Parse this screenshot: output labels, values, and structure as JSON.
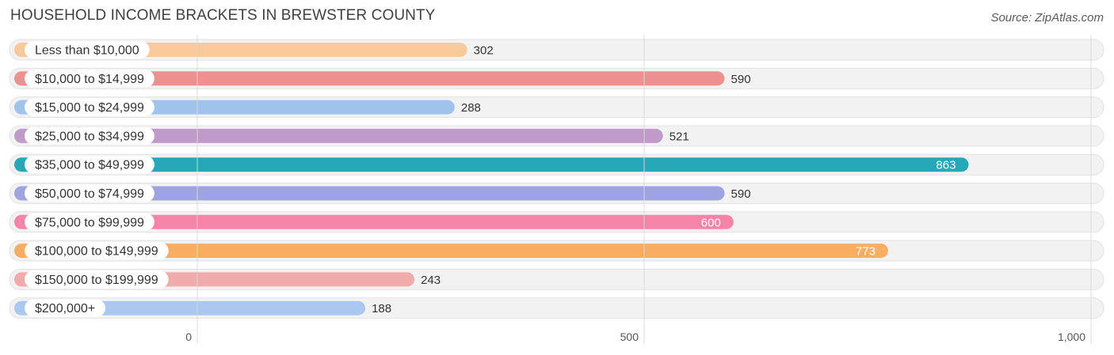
{
  "title": "HOUSEHOLD INCOME BRACKETS IN BREWSTER COUNTY",
  "source": "Source: ZipAtlas.com",
  "chart_data": {
    "type": "bar",
    "orientation": "horizontal",
    "title": "HOUSEHOLD INCOME BRACKETS IN BREWSTER COUNTY",
    "categories": [
      "Less than $10,000",
      "$10,000 to $14,999",
      "$15,000 to $24,999",
      "$25,000 to $34,999",
      "$35,000 to $49,999",
      "$50,000 to $74,999",
      "$75,000 to $99,999",
      "$100,000 to $149,999",
      "$150,000 to $199,999",
      "$200,000+"
    ],
    "values": [
      302,
      590,
      288,
      521,
      863,
      590,
      600,
      773,
      243,
      188
    ],
    "value_labels": [
      "302",
      "590",
      "288",
      "521",
      "863",
      "590",
      "600",
      "773",
      "243",
      "188"
    ],
    "colors": [
      "#f9c99a",
      "#ec918f",
      "#9fc3ea",
      "#c09ac8",
      "#27a8b8",
      "#9ea4e2",
      "#f584a8",
      "#f9ad63",
      "#f0abab",
      "#a9c7ef"
    ],
    "label_inside": [
      false,
      false,
      false,
      false,
      true,
      false,
      true,
      true,
      false,
      false
    ],
    "xlim": [
      0,
      1000
    ],
    "ticks": [
      0,
      500,
      1000
    ],
    "tick_labels": [
      "0",
      "500",
      "1,000"
    ],
    "grid": true
  }
}
